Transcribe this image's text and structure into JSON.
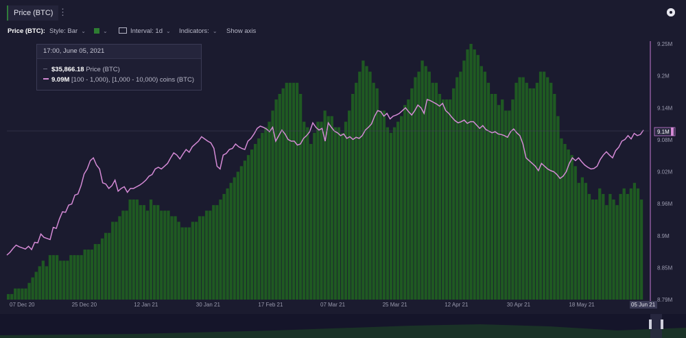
{
  "header": {
    "title": "Price (BTC)",
    "menu_glyph": "⋮",
    "settings_icon": "settings-icon"
  },
  "toolbar": {
    "series_label": "Price (BTC):",
    "style_label": "Style: Bar",
    "color": "#2e7d32",
    "interval_label": "Interval: 1d",
    "indicators_label": "Indicators:",
    "show_axis_label": "Show axis"
  },
  "tooltip": {
    "time": "17:00, June 05, 2021",
    "price_value": "$35,866.18",
    "price_label": "Price (BTC)",
    "holdings_value": "9.09M",
    "holdings_label": "[100 - 1,000), [1,000 - 10,000) coins (BTC)"
  },
  "chart_data": {
    "type": "bar",
    "x_tick_labels": [
      "07 Dec 20",
      "25 Dec 20",
      "12 Jan 21",
      "30 Jan 21",
      "17 Feb 21",
      "07 Mar 21",
      "25 Mar 21",
      "12 Apr 21",
      "30 Apr 21",
      "18 May 21",
      "05 Jun 21"
    ],
    "y_tick_labels": [
      "9.25M",
      "9.2M",
      "9.14M",
      "9.08M",
      "9.02M",
      "8.96M",
      "8.9M",
      "8.85M",
      "8.79M"
    ],
    "ylim": [
      8.79,
      9.25
    ],
    "current_value_label": "9.1M",
    "colors": {
      "bars": "#1f5a22",
      "line": "#d58ad6",
      "crosshair": "#c77ad6"
    },
    "series": [
      {
        "name": "Price (BTC)",
        "values": [
          8.8,
          8.8,
          8.81,
          8.81,
          8.81,
          8.81,
          8.82,
          8.83,
          8.84,
          8.85,
          8.86,
          8.85,
          8.87,
          8.87,
          8.87,
          8.86,
          8.86,
          8.86,
          8.87,
          8.87,
          8.87,
          8.87,
          8.88,
          8.88,
          8.88,
          8.89,
          8.89,
          8.9,
          8.91,
          8.91,
          8.93,
          8.93,
          8.94,
          8.95,
          8.95,
          8.97,
          8.97,
          8.97,
          8.96,
          8.96,
          8.95,
          8.97,
          8.96,
          8.96,
          8.95,
          8.95,
          8.95,
          8.94,
          8.94,
          8.93,
          8.92,
          8.92,
          8.92,
          8.93,
          8.93,
          8.94,
          8.94,
          8.95,
          8.95,
          8.96,
          8.96,
          8.97,
          8.98,
          8.99,
          9.0,
          9.01,
          9.02,
          9.03,
          9.04,
          9.05,
          9.06,
          9.07,
          9.08,
          9.09,
          9.1,
          9.11,
          9.13,
          9.15,
          9.16,
          9.17,
          9.18,
          9.18,
          9.18,
          9.18,
          9.16,
          9.11,
          9.1,
          9.07,
          9.09,
          9.11,
          9.11,
          9.13,
          9.12,
          9.12,
          9.1,
          9.1,
          9.09,
          9.11,
          9.13,
          9.16,
          9.18,
          9.2,
          9.22,
          9.21,
          9.2,
          9.18,
          9.17,
          9.13,
          9.13,
          9.1,
          9.09,
          9.1,
          9.11,
          9.12,
          9.14,
          9.15,
          9.17,
          9.19,
          9.2,
          9.22,
          9.21,
          9.2,
          9.18,
          9.18,
          9.16,
          9.15,
          9.15,
          9.15,
          9.17,
          9.19,
          9.2,
          9.22,
          9.24,
          9.25,
          9.24,
          9.23,
          9.21,
          9.2,
          9.18,
          9.16,
          9.16,
          9.14,
          9.15,
          9.13,
          9.13,
          9.15,
          9.18,
          9.19,
          9.19,
          9.18,
          9.17,
          9.17,
          9.18,
          9.2,
          9.2,
          9.19,
          9.18,
          9.16,
          9.12,
          9.08,
          9.07,
          9.06,
          9.05,
          9.03,
          9.0,
          9.01,
          9.0,
          8.98,
          8.97,
          8.97,
          8.99,
          8.98,
          8.96,
          8.98,
          8.97,
          8.96,
          8.98,
          8.99,
          8.98,
          8.99,
          9.0,
          8.99,
          8.97
        ]
      },
      {
        "name": "[100 - 1,000), [1,000 - 10,000) coins (BTC)",
        "values": [
          8.87,
          8.875,
          8.882,
          8.888,
          8.885,
          8.883,
          8.881,
          8.886,
          8.88,
          8.893,
          8.892,
          8.908,
          8.902,
          8.9,
          8.898,
          8.92,
          8.918,
          8.935,
          8.948,
          8.947,
          8.96,
          8.962,
          8.978,
          8.98,
          8.995,
          9.016,
          9.025,
          9.04,
          9.045,
          9.032,
          9.025,
          9.0,
          8.998,
          8.99,
          8.995,
          9.005,
          8.985,
          8.99,
          8.993,
          8.983,
          8.99,
          8.99,
          8.993,
          8.996,
          9.0,
          9.005,
          9.012,
          9.015,
          9.025,
          9.028,
          9.025,
          9.03,
          9.035,
          9.045,
          9.054,
          9.05,
          9.043,
          9.052,
          9.06,
          9.055,
          9.065,
          9.07,
          9.075,
          9.083,
          9.079,
          9.075,
          9.072,
          9.062,
          9.03,
          9.025,
          9.05,
          9.053,
          9.06,
          9.062,
          9.07,
          9.065,
          9.062,
          9.06,
          9.075,
          9.08,
          9.088,
          9.098,
          9.102,
          9.1,
          9.097,
          9.092,
          9.1,
          9.075,
          9.085,
          9.095,
          9.088,
          9.078,
          9.075,
          9.075,
          9.068,
          9.07,
          9.08,
          9.085,
          9.092,
          9.108,
          9.1,
          9.095,
          9.098,
          9.075,
          9.108,
          9.1,
          9.093,
          9.09,
          9.085,
          9.088,
          9.08,
          9.083,
          9.078,
          9.082,
          9.08,
          9.085,
          9.095,
          9.1,
          9.106,
          9.12,
          9.13,
          9.128,
          9.12,
          9.125,
          9.115,
          9.12,
          9.122,
          9.125,
          9.13,
          9.135,
          9.128,
          9.122,
          9.13,
          9.14,
          9.135,
          9.125,
          9.15,
          9.148,
          9.145,
          9.142,
          9.138,
          9.143,
          9.13,
          9.125,
          9.118,
          9.112,
          9.108,
          9.11,
          9.113,
          9.107,
          9.11,
          9.11,
          9.104,
          9.098,
          9.103,
          9.096,
          9.093,
          9.09,
          9.092,
          9.088,
          9.087,
          9.085,
          9.082,
          9.092,
          9.097,
          9.09,
          9.085,
          9.07,
          9.045,
          9.04,
          9.035,
          9.03,
          9.022,
          9.035,
          9.03,
          9.025,
          9.022,
          9.02,
          9.015,
          9.008,
          9.012,
          9.02,
          9.035,
          9.045,
          9.04,
          9.045,
          9.038,
          9.032,
          9.028,
          9.025,
          9.026,
          9.03,
          9.042,
          9.05,
          9.056,
          9.05,
          9.045,
          9.058,
          9.064,
          9.075,
          9.078,
          9.085,
          9.079,
          9.089,
          9.085,
          9.087,
          9.095
        ]
      }
    ]
  }
}
